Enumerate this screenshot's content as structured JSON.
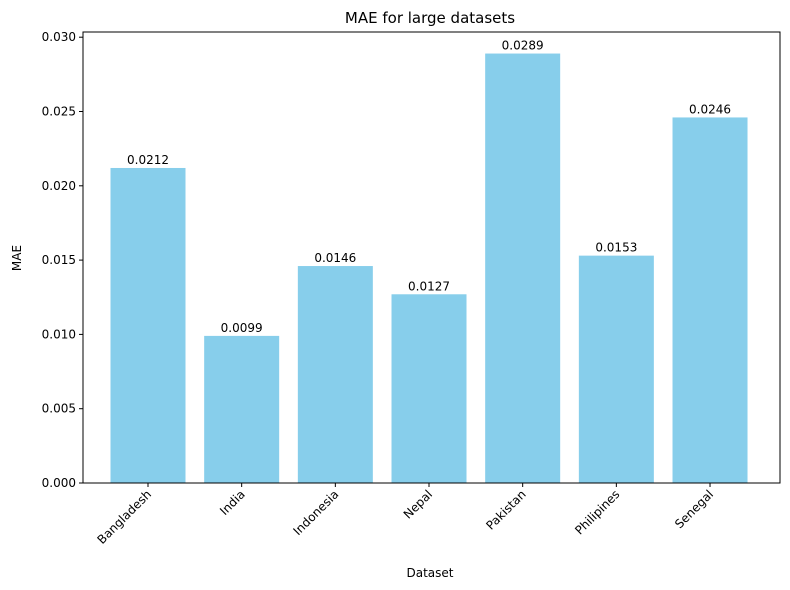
{
  "chart_data": {
    "type": "bar",
    "title": "MAE for large datasets",
    "xlabel": "Dataset",
    "ylabel": "MAE",
    "categories": [
      "Bangladesh",
      "India",
      "Indonesia",
      "Nepal",
      "Pakistan",
      "Philipines",
      "Senegal"
    ],
    "values": [
      0.0212,
      0.0099,
      0.0146,
      0.0127,
      0.0289,
      0.0153,
      0.0246
    ],
    "data_labels": [
      "0.0212",
      "0.0099",
      "0.0146",
      "0.0127",
      "0.0289",
      "0.0153",
      "0.0246"
    ],
    "ylim": [
      0,
      0.03035
    ],
    "yticks": [
      0.0,
      0.005,
      0.01,
      0.015,
      0.02,
      0.025,
      0.03
    ],
    "ytick_labels": [
      "0.000",
      "0.005",
      "0.010",
      "0.015",
      "0.020",
      "0.025",
      "0.030"
    ],
    "bar_color": "#87ceeb",
    "grid": false,
    "legend": "none"
  }
}
